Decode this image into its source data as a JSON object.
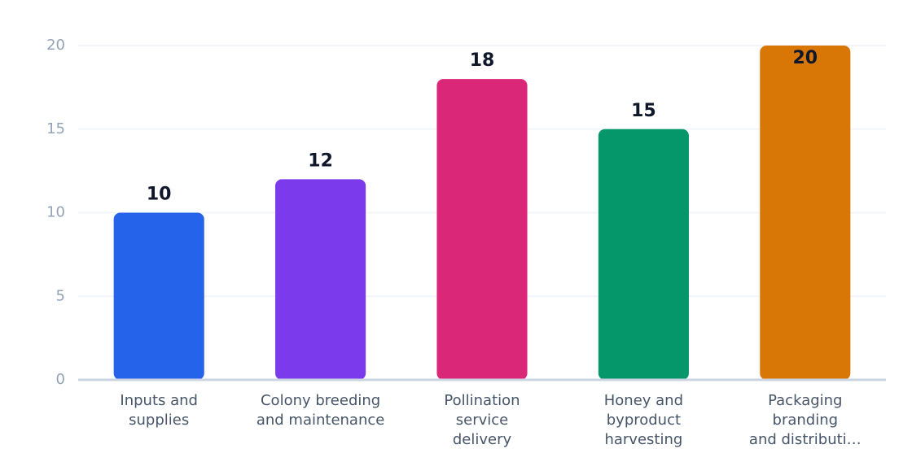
{
  "chart_data": {
    "type": "bar",
    "categories": [
      [
        "Inputs and",
        "supplies"
      ],
      [
        "Colony breeding",
        "and maintenance"
      ],
      [
        "Pollination",
        "service",
        "delivery"
      ],
      [
        "Honey and",
        "byproduct",
        "harvesting"
      ],
      [
        "Packaging",
        "branding",
        "and distributi…"
      ]
    ],
    "values": [
      10,
      12,
      18,
      15,
      20
    ],
    "colors": [
      "#2563eb",
      "#7c3aed",
      "#db2777",
      "#059669",
      "#d97706"
    ],
    "ylim": [
      0,
      20
    ],
    "yticks": [
      0,
      5,
      10,
      15,
      20
    ],
    "grid": true
  }
}
